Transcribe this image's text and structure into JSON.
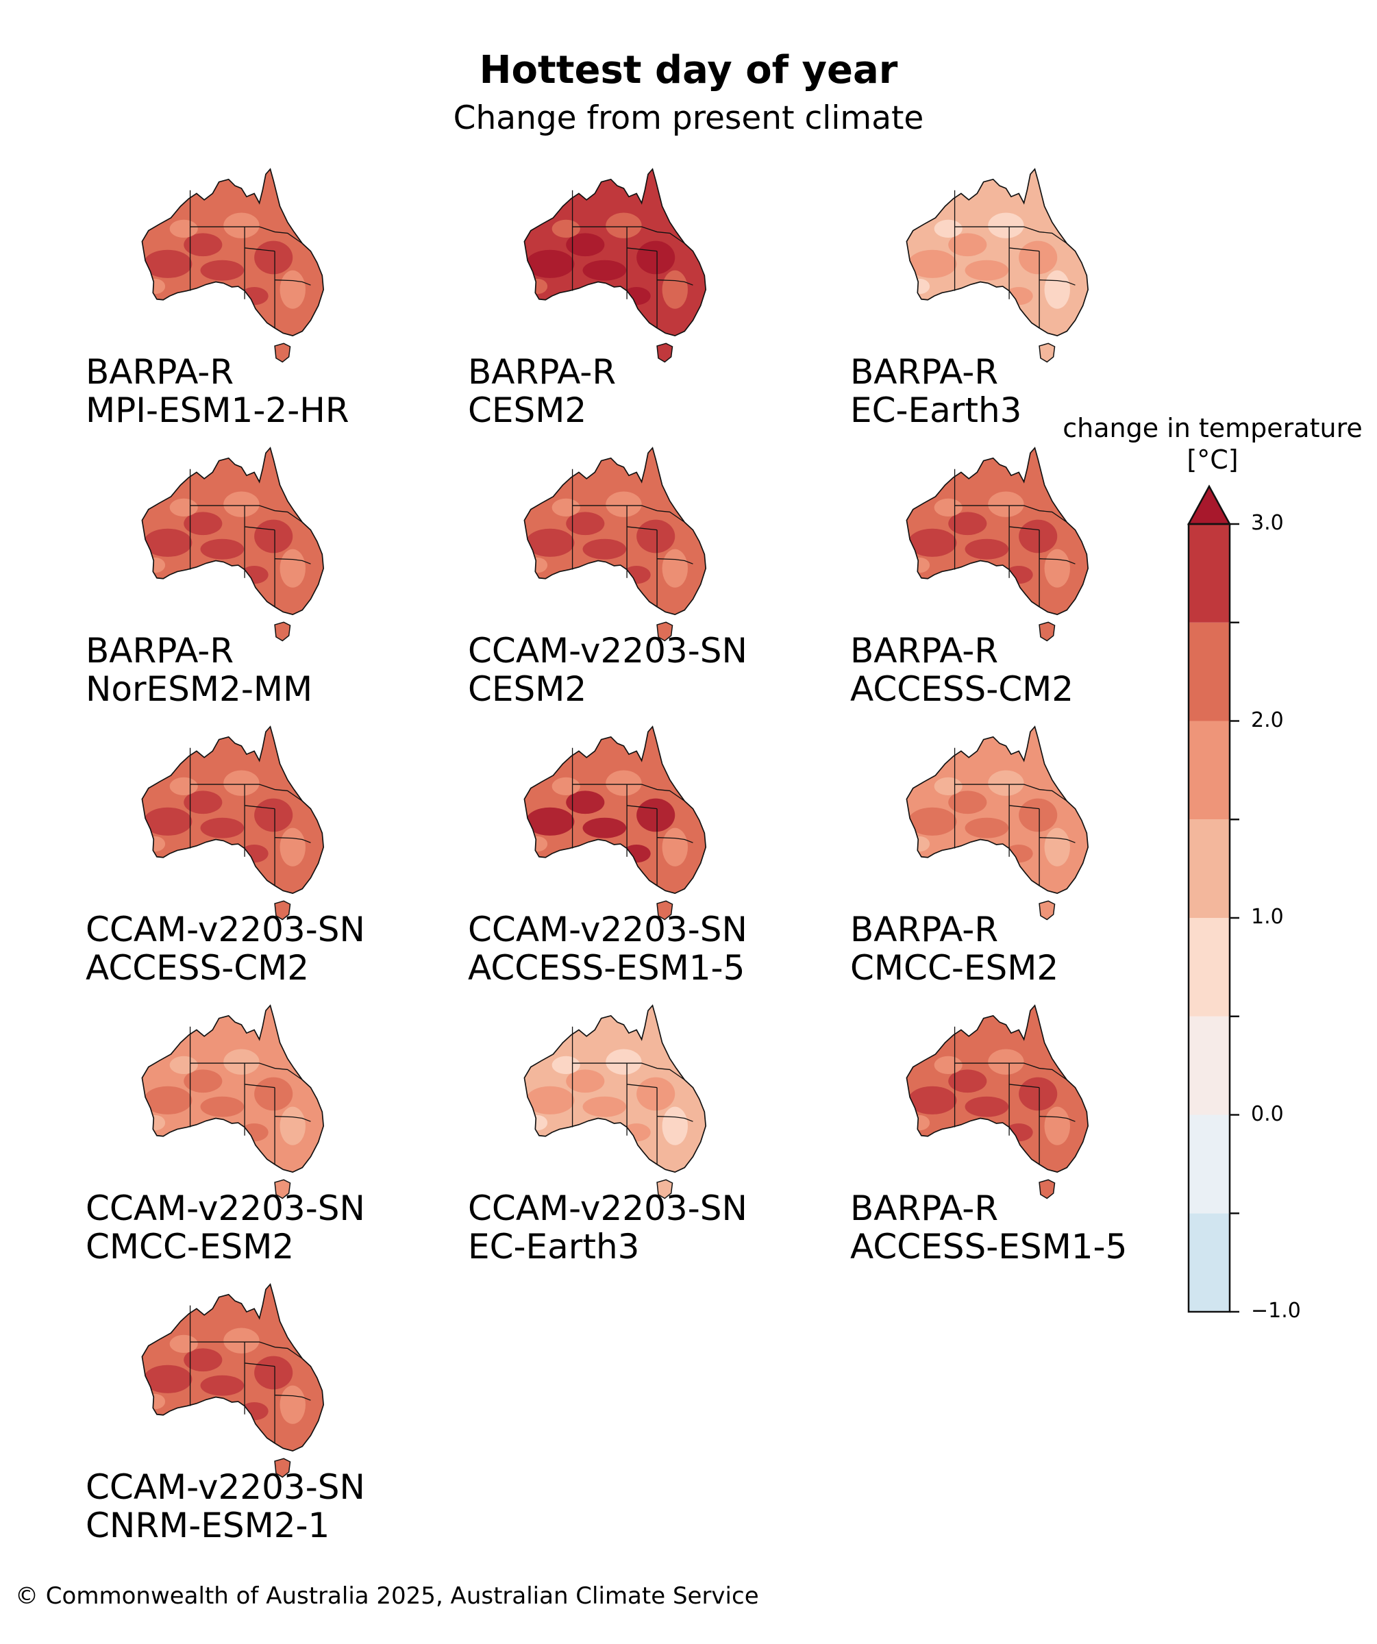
{
  "figure": {
    "title": "Hottest day of year",
    "subtitle": "Change from present climate",
    "footer": "© Commonwealth of Australia 2025, Australian Climate Service"
  },
  "panels": [
    {
      "rcm": "BARPA-R",
      "gcm": "MPI-ESM1-2-HR",
      "base_color": "#dd6e57",
      "patch_color": "#c0383c",
      "light_color": "#ee9579"
    },
    {
      "rcm": "BARPA-R",
      "gcm": "CESM2",
      "base_color": "#c0383c",
      "patch_color": "#a8182c",
      "light_color": "#dd6e57"
    },
    {
      "rcm": "BARPA-R",
      "gcm": "EC-Earth3",
      "base_color": "#f3b79c",
      "patch_color": "#ee9579",
      "light_color": "#fbdccc"
    },
    {
      "rcm": "BARPA-R",
      "gcm": "NorESM2-MM",
      "base_color": "#dd6e57",
      "patch_color": "#c0383c",
      "light_color": "#ee9579"
    },
    {
      "rcm": "CCAM-v2203-SN",
      "gcm": "CESM2",
      "base_color": "#dd6e57",
      "patch_color": "#c0383c",
      "light_color": "#ee9579"
    },
    {
      "rcm": "BARPA-R",
      "gcm": "ACCESS-CM2",
      "base_color": "#dd6e57",
      "patch_color": "#c0383c",
      "light_color": "#ee9579"
    },
    {
      "rcm": "CCAM-v2203-SN",
      "gcm": "ACCESS-CM2",
      "base_color": "#dd6e57",
      "patch_color": "#c0383c",
      "light_color": "#ee9579"
    },
    {
      "rcm": "CCAM-v2203-SN",
      "gcm": "ACCESS-ESM1-5",
      "base_color": "#dd6e57",
      "patch_color": "#a8182c",
      "light_color": "#ee9579"
    },
    {
      "rcm": "BARPA-R",
      "gcm": "CMCC-ESM2",
      "base_color": "#ee9579",
      "patch_color": "#dd6e57",
      "light_color": "#f3b79c"
    },
    {
      "rcm": "CCAM-v2203-SN",
      "gcm": "CMCC-ESM2",
      "base_color": "#ee9579",
      "patch_color": "#dd6e57",
      "light_color": "#f3b79c"
    },
    {
      "rcm": "CCAM-v2203-SN",
      "gcm": "EC-Earth3",
      "base_color": "#f3b79c",
      "patch_color": "#ee9579",
      "light_color": "#fbdccc"
    },
    {
      "rcm": "BARPA-R",
      "gcm": "ACCESS-ESM1-5",
      "base_color": "#dd6e57",
      "patch_color": "#c0383c",
      "light_color": "#ee9579"
    },
    {
      "rcm": "CCAM-v2203-SN",
      "gcm": "CNRM-ESM2-1",
      "base_color": "#dd6e57",
      "patch_color": "#c0383c",
      "light_color": "#ee9579"
    }
  ],
  "colorbar": {
    "title_line1": "change in temperature",
    "title_line2": "[°C]",
    "min": -1.0,
    "max": 3.0,
    "extend": "max",
    "levels": [
      -1.0,
      -0.5,
      0.0,
      0.5,
      1.0,
      1.5,
      2.0,
      2.5,
      3.0
    ],
    "colors": [
      "#d1e5f0",
      "#eaf0f5",
      "#f6ebe8",
      "#fbdccc",
      "#f3b79c",
      "#ee9579",
      "#dd6e57",
      "#c0383c",
      "#a8182c"
    ],
    "tick_labels": [
      "3.0",
      "2.0",
      "1.0",
      "0.0",
      "−1.0"
    ],
    "tick_values": [
      3.0,
      2.0,
      1.0,
      0.0,
      -1.0
    ]
  }
}
